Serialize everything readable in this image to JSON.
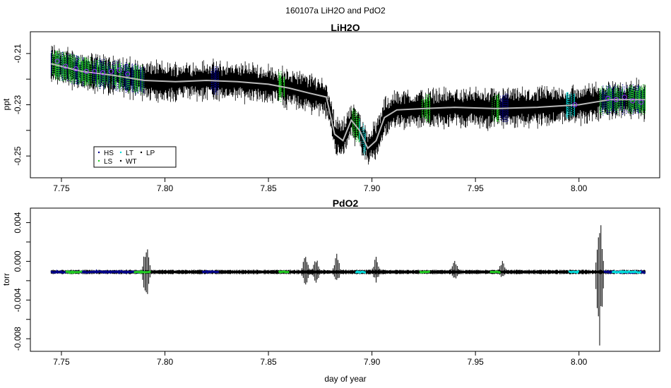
{
  "figure": {
    "title": "160107a   LiH2O and PdO2",
    "xlabel": "day of year"
  },
  "colors": {
    "WT": "#000000",
    "HS": "#00008b",
    "LS": "#22cc22",
    "LT": "#00dddd",
    "LP": "#000000",
    "smooth": "#bbbbbb",
    "circle": "#9933ff"
  },
  "chart_data": [
    {
      "type": "line",
      "title": "LiH2O",
      "ylabel": "ppt",
      "xlim": [
        7.735,
        8.039
      ],
      "ylim": [
        -0.2585,
        -0.2015
      ],
      "x_ticks": [
        7.75,
        7.8,
        7.85,
        7.9,
        7.95,
        8.0
      ],
      "x_tick_labels": [
        "7.75",
        "7.80",
        "7.85",
        "7.90",
        "7.95",
        "8.00"
      ],
      "y_ticks": [
        -0.25,
        -0.23,
        -0.21
      ],
      "y_tick_labels": [
        "-0.25",
        "-0.23",
        "-0.21"
      ],
      "smooth_trend": {
        "x": [
          7.745,
          7.76,
          7.775,
          7.79,
          7.805,
          7.82,
          7.835,
          7.85,
          7.86,
          7.87,
          7.878,
          7.882,
          7.886,
          7.89,
          7.894,
          7.898,
          7.902,
          7.906,
          7.912,
          7.925,
          7.94,
          7.96,
          7.98,
          8.0,
          8.015,
          8.032
        ],
        "y": [
          -0.214,
          -0.217,
          -0.2185,
          -0.2205,
          -0.221,
          -0.2205,
          -0.221,
          -0.222,
          -0.2235,
          -0.2255,
          -0.227,
          -0.2415,
          -0.244,
          -0.236,
          -0.24,
          -0.247,
          -0.244,
          -0.235,
          -0.232,
          -0.2315,
          -0.231,
          -0.2315,
          -0.231,
          -0.23,
          -0.228,
          -0.228
        ]
      },
      "mode_segments": [
        {
          "name": "HS",
          "x": [
            7.745,
            7.79
          ]
        },
        {
          "name": "LS",
          "x": [
            7.745,
            7.79
          ]
        },
        {
          "name": "HS",
          "x": [
            7.822,
            7.826
          ]
        },
        {
          "name": "LS",
          "x": [
            7.855,
            7.859
          ]
        },
        {
          "name": "LS",
          "x": [
            7.89,
            7.894
          ]
        },
        {
          "name": "LT",
          "x": [
            7.894,
            7.897
          ]
        },
        {
          "name": "LS",
          "x": [
            7.924,
            7.928
          ]
        },
        {
          "name": "LS",
          "x": [
            7.958,
            7.962
          ]
        },
        {
          "name": "HS",
          "x": [
            7.962,
            7.966
          ]
        },
        {
          "name": "LT",
          "x": [
            7.994,
            7.998
          ]
        },
        {
          "name": "HS",
          "x": [
            8.01,
            8.032
          ]
        },
        {
          "name": "LS",
          "x": [
            8.01,
            8.032
          ]
        }
      ],
      "circle_markers": {
        "x": [
          7.748,
          7.752,
          7.757,
          7.762,
          7.766,
          7.77,
          7.774,
          7.778,
          7.782,
          7.998,
          8.014,
          8.018,
          8.022,
          8.026,
          8.03
        ],
        "y": [
          -0.213,
          -0.215,
          -0.216,
          -0.217,
          -0.217,
          -0.2175,
          -0.217,
          -0.2165,
          -0.218,
          -0.23,
          -0.2275,
          -0.228,
          -0.227,
          -0.2285,
          -0.229
        ]
      },
      "legend": {
        "placement": "bottom-left",
        "entries": [
          {
            "label": "HS",
            "color": "#00008b"
          },
          {
            "label": "LS",
            "color": "#22cc22"
          },
          {
            "label": "LT",
            "color": "#00dddd"
          },
          {
            "label": "WT",
            "color": "#000000"
          },
          {
            "label": "LP",
            "color": "#000000"
          }
        ]
      }
    },
    {
      "type": "line",
      "title": "PdO2",
      "ylabel": "torr",
      "xlim": [
        7.735,
        8.039
      ],
      "ylim": [
        -0.0093,
        0.0055
      ],
      "x_ticks": [
        7.75,
        7.8,
        7.85,
        7.9,
        7.95,
        8.0
      ],
      "x_tick_labels": [
        "7.75",
        "7.80",
        "7.85",
        "7.90",
        "7.95",
        "8.00"
      ],
      "y_ticks": [
        -0.008,
        -0.004,
        0.0,
        0.004
      ],
      "y_tick_labels": [
        "-0.008",
        "-0.004",
        "0.000",
        "0.004"
      ],
      "baseline": -0.0011,
      "spikes": [
        {
          "x": 7.791,
          "max": 0.0021,
          "min": -0.0046
        },
        {
          "x": 7.868,
          "max": 0.001,
          "min": -0.0028
        },
        {
          "x": 7.873,
          "max": 0.0005,
          "min": -0.0025
        },
        {
          "x": 7.883,
          "max": 0.0008,
          "min": -0.0024
        },
        {
          "x": 7.902,
          "max": 0.0006,
          "min": -0.0022
        },
        {
          "x": 7.94,
          "max": 0.0005,
          "min": -0.002
        },
        {
          "x": 7.963,
          "max": 0.0004,
          "min": -0.0018
        },
        {
          "x": 8.01,
          "max": 0.0054,
          "min": -0.0087
        }
      ],
      "mode_segments": [
        {
          "name": "HS",
          "x": [
            7.745,
            7.79
          ]
        },
        {
          "name": "LS",
          "x": [
            7.752,
            7.76
          ]
        },
        {
          "name": "LS",
          "x": [
            7.785,
            7.793
          ]
        },
        {
          "name": "HS",
          "x": [
            7.818,
            7.826
          ]
        },
        {
          "name": "LS",
          "x": [
            7.855,
            7.86
          ]
        },
        {
          "name": "LT",
          "x": [
            7.892,
            7.897
          ]
        },
        {
          "name": "LS",
          "x": [
            7.923,
            7.928
          ]
        },
        {
          "name": "LS",
          "x": [
            7.957,
            7.962
          ]
        },
        {
          "name": "LT",
          "x": [
            7.995,
            8.0
          ]
        },
        {
          "name": "HS",
          "x": [
            8.012,
            8.032
          ]
        },
        {
          "name": "LT",
          "x": [
            8.016,
            8.03
          ]
        }
      ]
    }
  ]
}
